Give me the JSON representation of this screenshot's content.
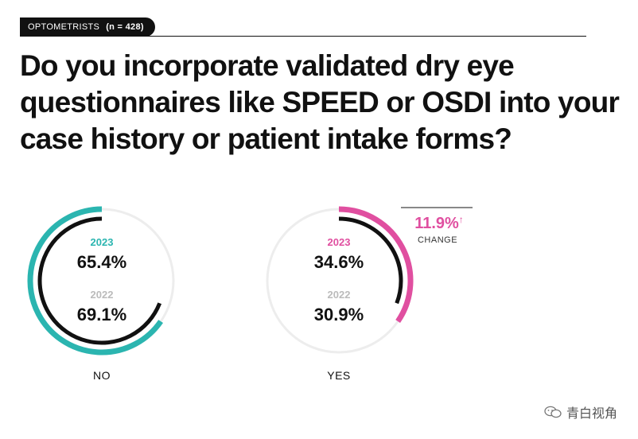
{
  "header": {
    "tag_label": "OPTOMETRISTS",
    "tag_n": "(n = 428)"
  },
  "title": "Do you incorporate validated dry eye questionnaires like SPEED or OSDI into your case history or patient intake forms?",
  "colors": {
    "teal": "#2bb5b0",
    "pink": "#e04fa0",
    "dark": "#111111",
    "track": "#ededed",
    "year2022": "#bbbbbb"
  },
  "chart_data": {
    "type": "donut",
    "title": "Do you incorporate validated dry eye questionnaires like SPEED or OSDI into your case history or patient intake forms?",
    "series_names": [
      "2023",
      "2022"
    ],
    "charts": [
      {
        "label": "NO",
        "year_2023": "2023",
        "value_2023": 65.4,
        "value_2023_text": "65.4%",
        "year_2022": "2022",
        "value_2022": 69.1,
        "value_2022_text": "69.1%"
      },
      {
        "label": "YES",
        "year_2023": "2023",
        "value_2023": 34.6,
        "value_2023_text": "34.6%",
        "year_2022": "2022",
        "value_2022": 30.9,
        "value_2022_text": "30.9%",
        "change_value": "11.9%",
        "change_arrow": "↑",
        "change_label": "CHANGE"
      }
    ]
  },
  "watermark": {
    "text": "青白视角",
    "icon": "wechat-icon"
  }
}
